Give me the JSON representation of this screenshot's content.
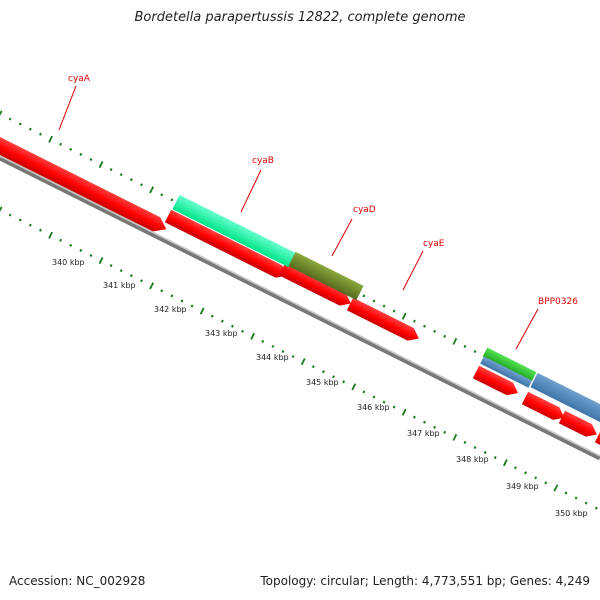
{
  "title": "Bordetella parapertussis 12822, complete genome",
  "footer": {
    "accession": "Accession: NC_002928",
    "summary": "Topology: circular; Length: 4,773,551 bp; Genes: 4,249"
  },
  "colors": {
    "label": "#e00000",
    "leader": "#e00000",
    "tick": "#1a7a1a",
    "backbone": "#888888"
  },
  "genes": [
    {
      "name": "cyaA",
      "color": "#00ff99"
    },
    {
      "name": "cyaB",
      "color": "#00ff99"
    },
    {
      "name": "cyaD",
      "color": "#6b8e23"
    },
    {
      "name": "cyaE",
      "color": "#e00000"
    },
    {
      "name": "BPP0326",
      "color": "#33cc33"
    }
  ],
  "kbp_labels": [
    "340 kbp",
    "341 kbp",
    "342 kbp",
    "343 kbp",
    "344 kbp",
    "345 kbp",
    "346 kbp",
    "347 kbp",
    "348 kbp",
    "349 kbp",
    "350 kbp"
  ]
}
